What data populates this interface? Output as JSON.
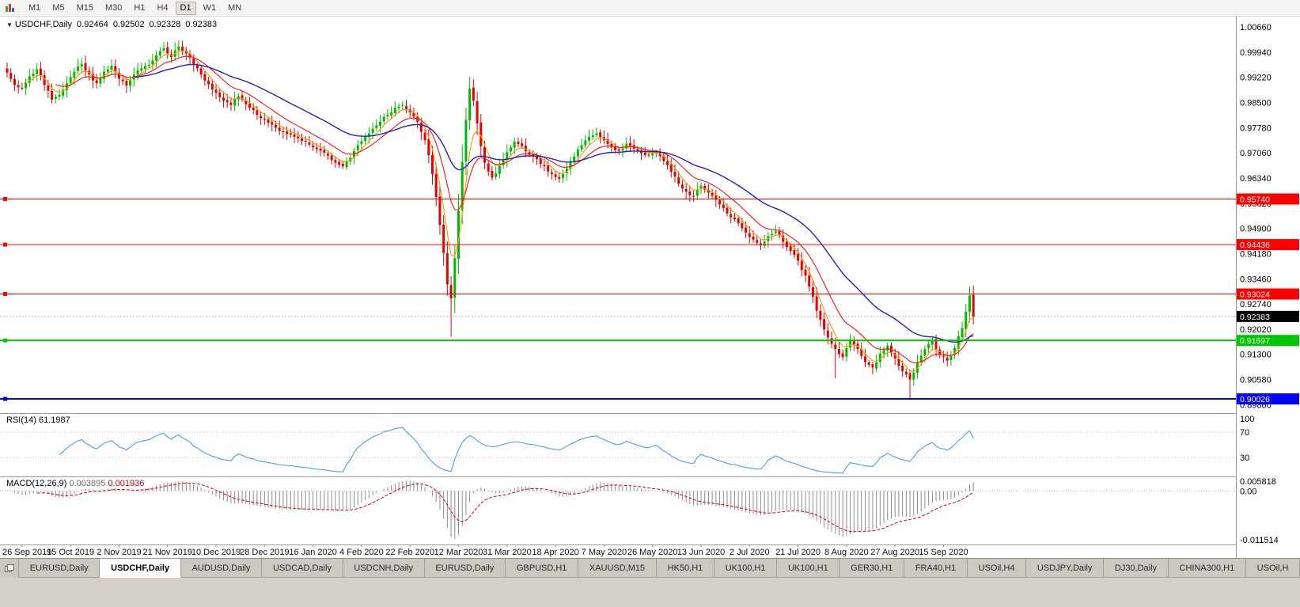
{
  "toolbar": {
    "timeframes": [
      "M1",
      "M5",
      "M15",
      "M30",
      "H1",
      "H4",
      "D1",
      "W1",
      "MN"
    ],
    "active_timeframe": "D1"
  },
  "chart_header": {
    "symbol": "USDCHF,Daily",
    "open": "0.92464",
    "high": "0.92502",
    "low": "0.92328",
    "close": "0.92383"
  },
  "rsi_panel": {
    "name": "RSI(14)",
    "value": "61.1987"
  },
  "macd_panel": {
    "name": "MACD(12,26,9)",
    "value_main": "0.003895",
    "value_signal": "0.001936"
  },
  "tabs": [
    "EURUSD,Daily",
    "USDCHF,Daily",
    "AUDUSD,Daily",
    "USDCAD,Daily",
    "USDCNH,Daily",
    "EURUSD,Daily",
    "GBPUSD,H1",
    "XAUUSD,M15",
    "HK50,H1",
    "UK100,H1",
    "UK100,H1",
    "GER30,H1",
    "FRA40,H1",
    "USOil,H4",
    "USDJPY,Daily",
    "DJ30,Daily",
    "CHINA300,H1",
    "USOil,H"
  ],
  "active_tab_index": 1,
  "chart_data": {
    "type": "candlestick",
    "symbol": "USDCHF",
    "timeframe": "Daily",
    "ohlc_current": {
      "open": 0.92464,
      "high": 0.92502,
      "low": 0.92328,
      "close": 0.92383
    },
    "bars": 260,
    "ylim": [
      0.8962,
      1.00931
    ],
    "price_tick_labels": [
      "1.00660",
      "0.99940",
      "0.99220",
      "0.98500",
      "0.97780",
      "0.97060",
      "0.96340",
      "0.95620",
      "0.94900",
      "0.94180",
      "0.93460",
      "0.92740",
      "0.92020",
      "0.91300",
      "0.90580",
      "0.89860"
    ],
    "x_label_bars": [
      4,
      17,
      30,
      43,
      56,
      69,
      82,
      95,
      108,
      121,
      134,
      147,
      160,
      173,
      186,
      199,
      212,
      225,
      238,
      251
    ],
    "x_label_texts": [
      "26 Sep 2019",
      "15 Oct 2019",
      "2 Nov 2019",
      "21 Nov 2019",
      "10 Dec 2019",
      "28 Dec 2019",
      "16 Jan 2020",
      "4 Feb 2020",
      "22 Feb 2020",
      "12 Mar 2020",
      "31 Mar 2020",
      "18 Apr 2020",
      "7 May 2020",
      "26 May 2020",
      "13 Jun 2020",
      "2 Jul 2020",
      "21 Jul 2020",
      "8 Aug 2020",
      "27 Aug 2020",
      "15 Sep 2020"
    ],
    "close_anchors": [
      [
        0,
        0.9935
      ],
      [
        2,
        0.99
      ],
      [
        4,
        0.989
      ],
      [
        6,
        0.9925
      ],
      [
        8,
        0.9945
      ],
      [
        10,
        0.99
      ],
      [
        12,
        0.9858
      ],
      [
        14,
        0.9872
      ],
      [
        16,
        0.9905
      ],
      [
        18,
        0.9938
      ],
      [
        20,
        0.996
      ],
      [
        22,
        0.993
      ],
      [
        24,
        0.9905
      ],
      [
        26,
        0.9938
      ],
      [
        28,
        0.9955
      ],
      [
        30,
        0.9918
      ],
      [
        32,
        0.9898
      ],
      [
        34,
        0.993
      ],
      [
        36,
        0.9948
      ],
      [
        38,
        0.9958
      ],
      [
        40,
        0.9985
      ],
      [
        42,
        1.0005
      ],
      [
        44,
        0.998
      ],
      [
        46,
        1.001
      ],
      [
        48,
        0.999
      ],
      [
        50,
        0.9958
      ],
      [
        52,
        0.993
      ],
      [
        54,
        0.9902
      ],
      [
        56,
        0.9878
      ],
      [
        58,
        0.9855
      ],
      [
        60,
        0.9843
      ],
      [
        62,
        0.9868
      ],
      [
        64,
        0.9845
      ],
      [
        66,
        0.9828
      ],
      [
        68,
        0.9805
      ],
      [
        70,
        0.9792
      ],
      [
        72,
        0.9778
      ],
      [
        74,
        0.9765
      ],
      [
        76,
        0.9758
      ],
      [
        78,
        0.9748
      ],
      [
        80,
        0.9738
      ],
      [
        82,
        0.9722
      ],
      [
        84,
        0.9712
      ],
      [
        86,
        0.9698
      ],
      [
        88,
        0.9678
      ],
      [
        90,
        0.9668
      ],
      [
        92,
        0.9692
      ],
      [
        94,
        0.9728
      ],
      [
        96,
        0.9752
      ],
      [
        98,
        0.9775
      ],
      [
        100,
        0.9795
      ],
      [
        102,
        0.9815
      ],
      [
        104,
        0.9835
      ],
      [
        106,
        0.9842
      ],
      [
        108,
        0.9822
      ],
      [
        110,
        0.9795
      ],
      [
        112,
        0.9742
      ],
      [
        114,
        0.9645
      ],
      [
        116,
        0.95
      ],
      [
        117,
        0.942
      ],
      [
        118,
        0.933
      ],
      [
        119,
        0.929
      ],
      [
        120,
        0.9405
      ],
      [
        121,
        0.954
      ],
      [
        122,
        0.968
      ],
      [
        123,
        0.98
      ],
      [
        124,
        0.989
      ],
      [
        125,
        0.9855
      ],
      [
        126,
        0.979
      ],
      [
        127,
        0.9725
      ],
      [
        128,
        0.9678
      ],
      [
        130,
        0.9635
      ],
      [
        132,
        0.9668
      ],
      [
        134,
        0.9708
      ],
      [
        136,
        0.9738
      ],
      [
        138,
        0.9725
      ],
      [
        140,
        0.97
      ],
      [
        142,
        0.9688
      ],
      [
        144,
        0.9668
      ],
      [
        146,
        0.9645
      ],
      [
        148,
        0.9632
      ],
      [
        150,
        0.9662
      ],
      [
        152,
        0.9695
      ],
      [
        154,
        0.9728
      ],
      [
        156,
        0.9752
      ],
      [
        158,
        0.9762
      ],
      [
        160,
        0.9742
      ],
      [
        162,
        0.9722
      ],
      [
        164,
        0.9712
      ],
      [
        166,
        0.9732
      ],
      [
        168,
        0.9718
      ],
      [
        170,
        0.9705
      ],
      [
        172,
        0.9698
      ],
      [
        174,
        0.9708
      ],
      [
        176,
        0.9682
      ],
      [
        178,
        0.9652
      ],
      [
        180,
        0.9618
      ],
      [
        182,
        0.9595
      ],
      [
        184,
        0.9582
      ],
      [
        186,
        0.9612
      ],
      [
        188,
        0.9592
      ],
      [
        190,
        0.9572
      ],
      [
        192,
        0.9548
      ],
      [
        194,
        0.9522
      ],
      [
        196,
        0.9505
      ],
      [
        198,
        0.9478
      ],
      [
        200,
        0.9458
      ],
      [
        202,
        0.9442
      ],
      [
        204,
        0.9468
      ],
      [
        206,
        0.9482
      ],
      [
        208,
        0.9452
      ],
      [
        210,
        0.9425
      ],
      [
        212,
        0.9398
      ],
      [
        214,
        0.9355
      ],
      [
        216,
        0.9295
      ],
      [
        218,
        0.9228
      ],
      [
        220,
        0.9178
      ],
      [
        222,
        0.9145
      ],
      [
        224,
        0.9122
      ],
      [
        226,
        0.9168
      ],
      [
        228,
        0.9145
      ],
      [
        230,
        0.9108
      ],
      [
        232,
        0.9092
      ],
      [
        234,
        0.9132
      ],
      [
        236,
        0.9155
      ],
      [
        238,
        0.9118
      ],
      [
        240,
        0.9082
      ],
      [
        242,
        0.9058
      ],
      [
        244,
        0.9108
      ],
      [
        246,
        0.9145
      ],
      [
        248,
        0.9172
      ],
      [
        250,
        0.9128
      ],
      [
        252,
        0.9112
      ],
      [
        254,
        0.9148
      ],
      [
        256,
        0.9205
      ],
      [
        257,
        0.9252
      ],
      [
        258,
        0.9298
      ],
      [
        259,
        0.9238
      ]
    ],
    "special_lows": [
      [
        119,
        0.918
      ],
      [
        222,
        0.9062
      ],
      [
        242,
        0.9
      ]
    ],
    "special_highs": [
      [
        46,
        1.0023
      ],
      [
        124,
        0.9905
      ],
      [
        258,
        0.9312
      ]
    ],
    "candle_up_color": "#00BA00",
    "candle_down_color": "#E60000",
    "moving_averages": [
      {
        "period": 5,
        "color": "#FF9500"
      },
      {
        "period": 13,
        "color": "#FF1010"
      },
      {
        "period": 34,
        "color": "#2020C8"
      }
    ],
    "hlines": [
      {
        "price": 0.9574,
        "color": "#FF0000",
        "width": 1,
        "tag": "0.95740"
      },
      {
        "price": 0.94436,
        "color": "#FF0000",
        "width": 1,
        "tag": "0.94436"
      },
      {
        "price": 0.93024,
        "color": "#FF0000",
        "width": 1,
        "tag": "0.93024"
      },
      {
        "price": 0.91697,
        "color": "#00C800",
        "width": 2,
        "tag": "0.91697"
      },
      {
        "price": 0.90026,
        "color": "#0000FF",
        "width": 2,
        "tag": "0.90026"
      }
    ],
    "current_price": {
      "price": 0.92383,
      "tag": "0.92383",
      "bg": "#000000"
    },
    "rsi": {
      "period": 14,
      "color": "#55A8DE",
      "levels": [
        70,
        30
      ],
      "axis_labels": [
        "100",
        "70",
        "30"
      ],
      "last_value": 61.1987
    },
    "macd": {
      "fast": 12,
      "slow": 26,
      "signal": 9,
      "hist_color": "#8C8C8C",
      "signal_color": "#E60000",
      "axis_labels": [
        "0.005818",
        "0.00",
        "-0.011514"
      ],
      "last_main": 0.003895,
      "last_signal": 0.001936
    }
  }
}
